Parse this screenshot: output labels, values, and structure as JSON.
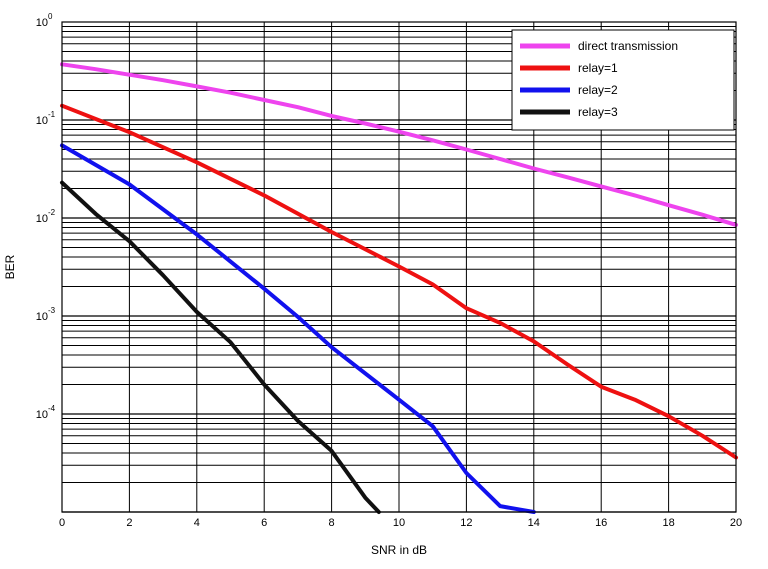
{
  "chart_data": {
    "type": "line",
    "xlabel": "SNR in dB",
    "ylabel": "BER",
    "xscale": "linear",
    "yscale": "log",
    "xlim": [
      0,
      20
    ],
    "ylim": [
      1e-05,
      1
    ],
    "xticks": [
      0,
      2,
      4,
      6,
      8,
      10,
      12,
      14,
      16,
      18,
      20
    ],
    "yticks": [
      {
        "value": 1,
        "base": "10",
        "exp": "0"
      },
      {
        "value": 0.1,
        "base": "10",
        "exp": "-1"
      },
      {
        "value": 0.01,
        "base": "10",
        "exp": "-2"
      },
      {
        "value": 0.001,
        "base": "10",
        "exp": "-3"
      },
      {
        "value": 0.0001,
        "base": "10",
        "exp": "-4"
      }
    ],
    "grid": true,
    "grid_minor": true,
    "legend_position": "top-right",
    "series": [
      {
        "name": "direct transmission",
        "color": "#ee44ee",
        "x": [
          0,
          1,
          2,
          3,
          4,
          5,
          6,
          7,
          8,
          9,
          10,
          11,
          12,
          13,
          14,
          15,
          16,
          17,
          18,
          19,
          20
        ],
        "y": [
          0.37,
          0.33,
          0.29,
          0.255,
          0.22,
          0.19,
          0.16,
          0.135,
          0.11,
          0.092,
          0.076,
          0.062,
          0.05,
          0.04,
          0.032,
          0.026,
          0.021,
          0.017,
          0.0135,
          0.0108,
          0.0085
        ]
      },
      {
        "name": "relay=1",
        "color": "#ee1111",
        "x": [
          0,
          2,
          4,
          6,
          8,
          10,
          11,
          12,
          13,
          14,
          15,
          16,
          17,
          18,
          19,
          20
        ],
        "y": [
          0.14,
          0.075,
          0.037,
          0.017,
          0.0072,
          0.0032,
          0.0021,
          0.0012,
          0.00085,
          0.00055,
          0.00032,
          0.00019,
          0.00014,
          9.5e-05,
          6e-05,
          3.6e-05
        ]
      },
      {
        "name": "relay=2",
        "color": "#1111ee",
        "x": [
          0,
          2,
          4,
          6,
          7,
          8,
          10,
          11,
          12,
          13,
          14
        ],
        "y": [
          0.055,
          0.022,
          0.0068,
          0.0019,
          0.00098,
          0.00048,
          0.00014,
          7.5e-05,
          2.5e-05,
          1.15e-05,
          1e-05
        ]
      },
      {
        "name": "relay=3",
        "color": "#111111",
        "x": [
          0,
          1,
          2,
          3,
          4,
          5,
          6,
          7,
          8,
          9,
          9.4
        ],
        "y": [
          0.023,
          0.011,
          0.0058,
          0.0026,
          0.0011,
          0.00054,
          0.0002,
          8.5e-05,
          4.2e-05,
          1.4e-05,
          1e-05
        ]
      }
    ]
  }
}
